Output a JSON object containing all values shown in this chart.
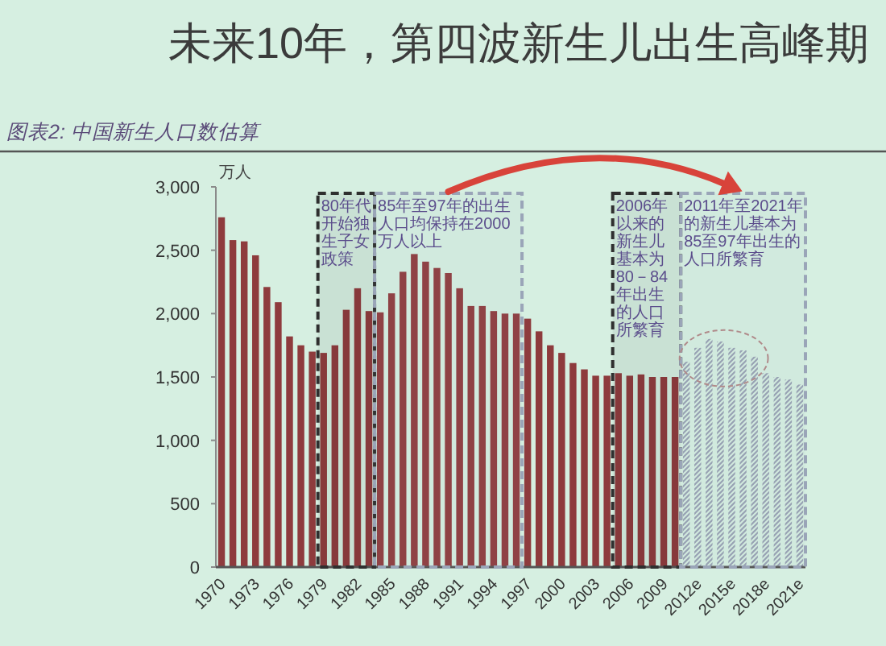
{
  "chart_data": {
    "type": "bar",
    "title": "未来10年，第四波新生儿出生高峰期",
    "subtitle": "图表2: 中国新生人口数估算",
    "ylabel": "万人",
    "series": [
      {
        "color": "#8e3b3d",
        "x": [
          1970,
          1971,
          1972,
          1973,
          1974,
          1975,
          1976,
          1977,
          1978,
          1979,
          1980,
          1981,
          1982,
          1983,
          1984,
          1985,
          1986,
          1987,
          1988,
          1989,
          1990,
          1991,
          1992,
          1993,
          1994,
          1995,
          1996,
          1997,
          1998,
          1999,
          2000,
          2001,
          2002,
          2003,
          2004,
          2005,
          2006,
          2007,
          2008,
          2009,
          2010
        ],
        "values": [
          2760,
          2580,
          2570,
          2460,
          2210,
          2090,
          1820,
          1750,
          1700,
          1690,
          1750,
          2030,
          2200,
          2020,
          2010,
          2160,
          2330,
          2470,
          2410,
          2360,
          2320,
          2200,
          2060,
          2060,
          2020,
          2000,
          2000,
          1960,
          1860,
          1750,
          1690,
          1610,
          1560,
          1510,
          1510,
          1530,
          1510,
          1520,
          1500,
          1500,
          1500
        ]
      },
      {
        "color": "#98a2b3",
        "x": [
          2011,
          2012,
          2013,
          2014,
          2015,
          2016,
          2017,
          2018,
          2019,
          2020,
          2021
        ],
        "values": [
          1620,
          1730,
          1800,
          1780,
          1730,
          1710,
          1660,
          1530,
          1500,
          1480,
          1440
        ]
      }
    ],
    "xlim": [
      1969.5,
      2021.5
    ],
    "xticks": [
      1970,
      1973,
      1976,
      1979,
      1982,
      1985,
      1988,
      1991,
      1994,
      1997,
      2000,
      2003,
      2006,
      2009,
      {
        "value": 2012,
        "label": "2012e"
      },
      {
        "value": 2015,
        "label": "2015e"
      },
      {
        "value": 2018,
        "label": "2018e"
      },
      {
        "value": 2021,
        "label": "2021e"
      }
    ],
    "ylim": [
      0,
      3000
    ],
    "yticks": [
      0,
      500,
      {
        "value": 1000,
        "label": "1,000"
      },
      {
        "value": 1500,
        "label": "1,500"
      },
      {
        "value": 2000,
        "label": "2,000"
      },
      {
        "value": 2500,
        "label": "2,500"
      },
      {
        "value": 3000,
        "label": "3,000"
      }
    ],
    "bands": [
      {
        "axis": "x",
        "from": 1978.5,
        "to": 1983.5,
        "label": "80年代开始独生子女政策",
        "color": "#2f2f2f"
      },
      {
        "axis": "x",
        "from": 1983.5,
        "to": 1996.5,
        "label": "85年至97年的出生人口均保持在2000万人以上",
        "color": "#9aa5b8"
      },
      {
        "axis": "x",
        "from": 2004.5,
        "to": 2010.5,
        "label": "2006年以来的新生儿基本为80－84年出生的人口所繁育",
        "color": "#2f2f2f"
      },
      {
        "axis": "x",
        "from": 2010.5,
        "to": 2021.5,
        "label": "2011年至2021年的新生儿基本为85至97年出生的人口所繁育",
        "color": "#9aa5b8"
      }
    ]
  }
}
